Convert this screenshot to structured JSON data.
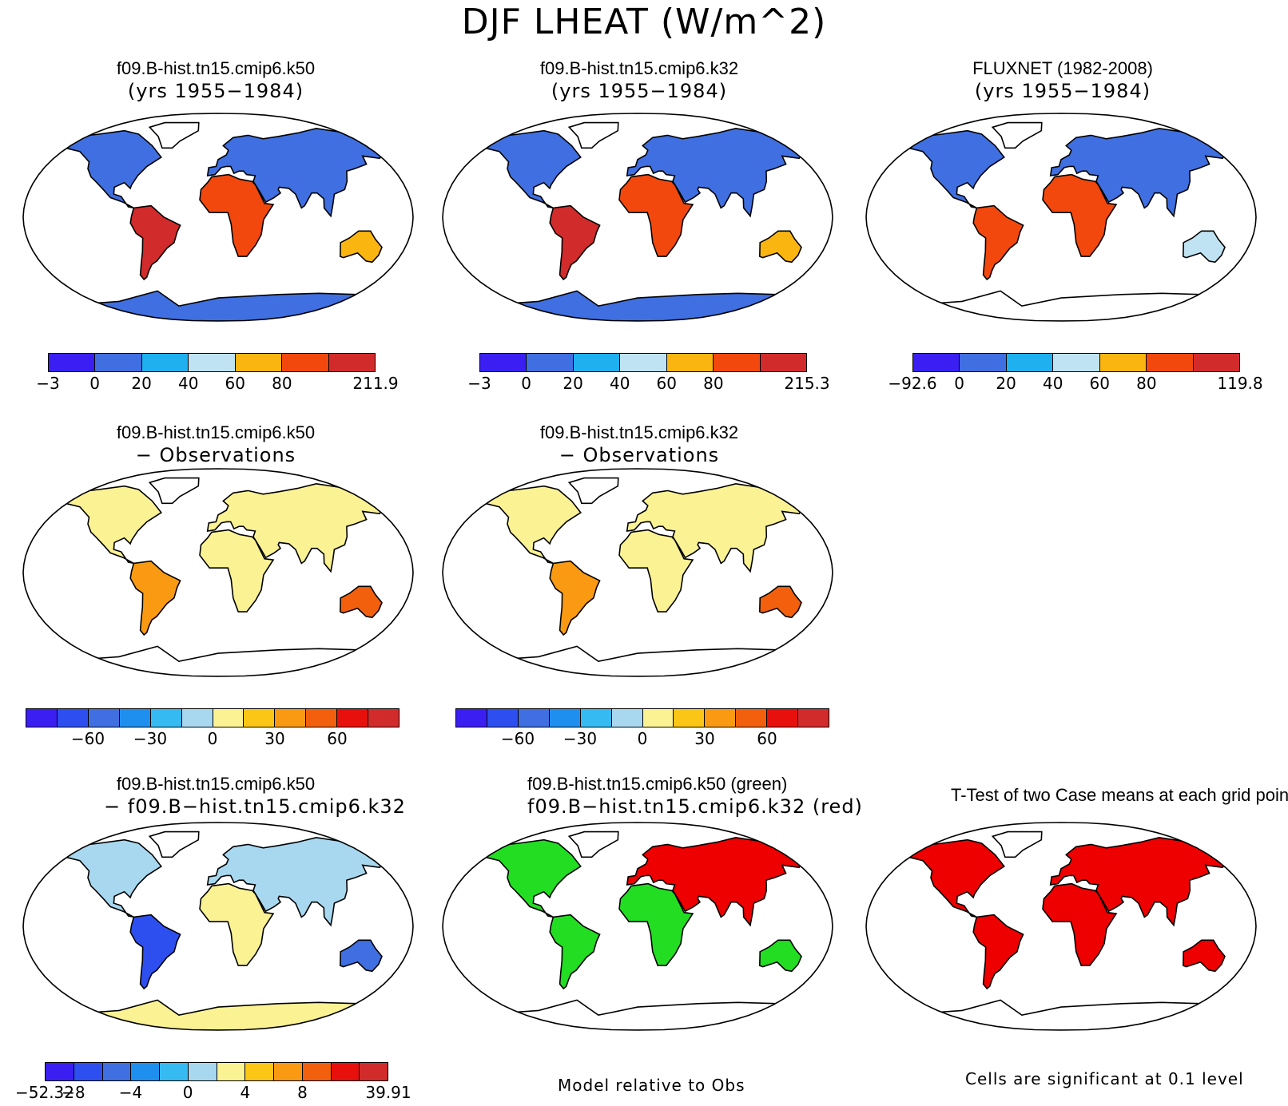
{
  "title": "DJF LHEAT (W/m^2)",
  "colors": {
    "abs": [
      "#3b1ff2",
      "#3f6fe0",
      "#1fb0ef",
      "#bfe3f3",
      "#fbb511",
      "#f2480e",
      "#d22b2b"
    ],
    "diff": [
      "#3b1ff2",
      "#2e4ff0",
      "#3f6fe0",
      "#1f8fef",
      "#35baf1",
      "#a8d8ef",
      "#fbf294",
      "#fbc615",
      "#f99a12",
      "#f2600e",
      "#e8100c",
      "#d22b2b"
    ],
    "sig_green": "#22dd22",
    "sig_red": "#ee0000"
  },
  "panels": [
    {
      "id": "k50",
      "title": "f09.B-hist.tn15.cmip6.k50",
      "subtitle": "(yrs 1955−1984)"
    },
    {
      "id": "k32",
      "title": "f09.B-hist.tn15.cmip6.k32",
      "subtitle": "(yrs 1955−1984)"
    },
    {
      "id": "obs",
      "title": "FLUXNET (1982-2008)",
      "subtitle": "(yrs 1955−1984)"
    },
    {
      "id": "k50-obs",
      "title": "f09.B-hist.tn15.cmip6.k50",
      "subtitle": "− Observations"
    },
    {
      "id": "k32-obs",
      "title": "f09.B-hist.tn15.cmip6.k32",
      "subtitle": "− Observations"
    },
    {
      "id": "k50-k32",
      "title": "f09.B-hist.tn15.cmip6.k50",
      "subtitle": "− f09.B−hist.tn15.cmip6.k32"
    },
    {
      "id": "green-red",
      "title": "f09.B-hist.tn15.cmip6.k50 (green)",
      "subtitle": "f09.B−hist.tn15.cmip6.k32 (red)"
    },
    {
      "id": "ttest",
      "title": "T-Test of two Case means at each grid point",
      "subtitle": ""
    }
  ],
  "colorbars": {
    "k50": [
      "−3",
      "0",
      "20",
      "40",
      "60",
      "80",
      "211.9"
    ],
    "k32": [
      "−3",
      "0",
      "20",
      "40",
      "60",
      "80",
      "215.3"
    ],
    "obs": [
      "−92.6",
      "0",
      "20",
      "40",
      "60",
      "80",
      "119.8"
    ],
    "diff": [
      "−60",
      "−30",
      "0",
      "30",
      "60"
    ],
    "k50_k32": [
      "−52.32",
      "−8",
      "−4",
      "0",
      "4",
      "8",
      "39.91"
    ]
  },
  "footers": {
    "model_vs_obs": "Model relative to Obs",
    "significance": "Cells are significant at 0.1 level"
  },
  "chart_data": [
    {
      "type": "heatmap",
      "title": "f09.B-hist.tn15.cmip6.k50",
      "subtitle": "(yrs 1955−1984)",
      "variable": "DJF LHEAT",
      "units": "W/m^2",
      "levels": [
        "−3",
        "0",
        "20",
        "40",
        "60",
        "80",
        "211.9"
      ],
      "min": -3,
      "max": 211.9
    },
    {
      "type": "heatmap",
      "title": "f09.B-hist.tn15.cmip6.k32",
      "subtitle": "(yrs 1955−1984)",
      "variable": "DJF LHEAT",
      "units": "W/m^2",
      "levels": [
        "−3",
        "0",
        "20",
        "40",
        "60",
        "80",
        "215.3"
      ],
      "min": -3,
      "max": 215.3
    },
    {
      "type": "heatmap",
      "title": "FLUXNET (1982-2008)",
      "subtitle": "(yrs 1955−1984)",
      "variable": "DJF LHEAT",
      "units": "W/m^2",
      "levels": [
        "−92.6",
        "0",
        "20",
        "40",
        "60",
        "80",
        "119.8"
      ],
      "min": -92.6,
      "max": 119.8
    },
    {
      "type": "heatmap",
      "title": "f09.B-hist.tn15.cmip6.k50",
      "subtitle": "− Observations",
      "levels": [
        "−60",
        "−30",
        "0",
        "30",
        "60"
      ]
    },
    {
      "type": "heatmap",
      "title": "f09.B-hist.tn15.cmip6.k32",
      "subtitle": "− Observations",
      "levels": [
        "−60",
        "−30",
        "0",
        "30",
        "60"
      ]
    },
    {
      "type": "heatmap",
      "title": "f09.B-hist.tn15.cmip6.k50",
      "subtitle": "− f09.B−hist.tn15.cmip6.k32",
      "levels": [
        "−52.32",
        "−8",
        "−4",
        "0",
        "4",
        "8",
        "39.91"
      ],
      "min": -52.32,
      "max": 39.91
    },
    {
      "type": "heatmap",
      "title": "f09.B-hist.tn15.cmip6.k50 (green)",
      "subtitle": "f09.B−hist.tn15.cmip6.k32 (red)",
      "note": "Model relative to Obs"
    },
    {
      "type": "heatmap",
      "title": "T-Test of two Case means at each grid point",
      "note": "Cells are significant at 0.1 level"
    }
  ]
}
